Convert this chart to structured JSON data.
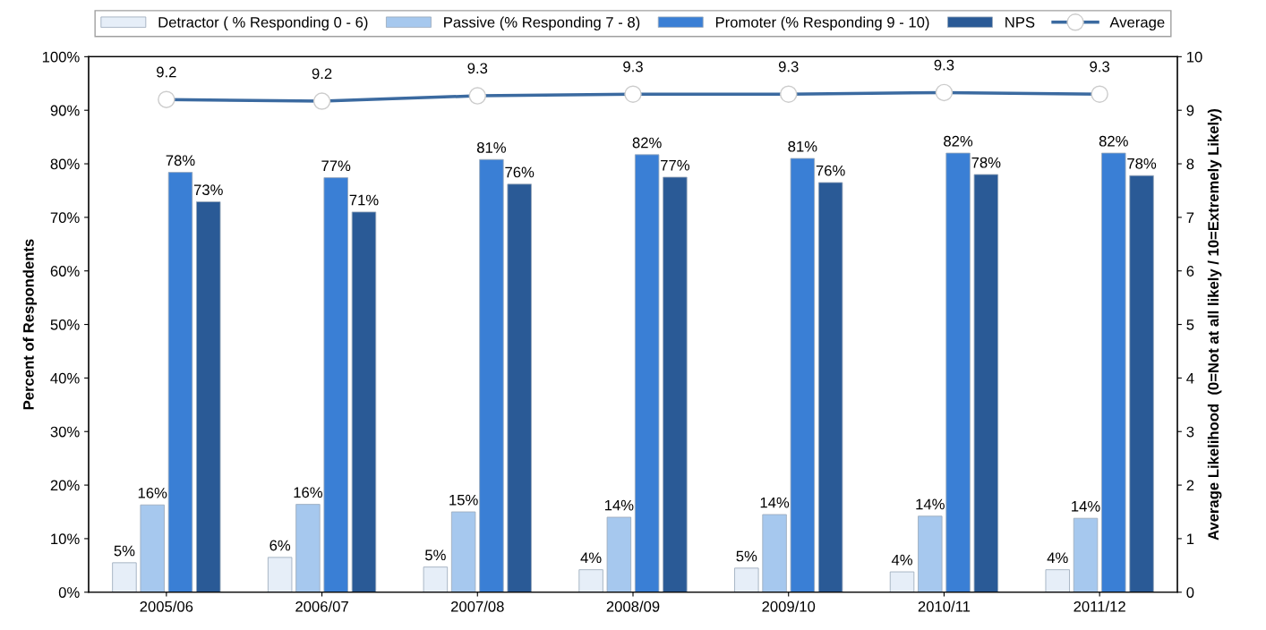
{
  "chart_data": {
    "type": "bar",
    "categories": [
      "2005/06",
      "2006/07",
      "2007/08",
      "2008/09",
      "2009/10",
      "2010/11",
      "2011/12"
    ],
    "ylabel": "Percent of Respondents",
    "y2label": "Average Likelihood  (0=Not at all likely / 10=Extremely Likely)",
    "ylim": [
      0,
      100
    ],
    "yticks": [
      {
        "value": 0,
        "label": "0%"
      },
      {
        "value": 10,
        "label": "10%"
      },
      {
        "value": 20,
        "label": "20%"
      },
      {
        "value": 30,
        "label": "30%"
      },
      {
        "value": 40,
        "label": "40%"
      },
      {
        "value": 50,
        "label": "50%"
      },
      {
        "value": 60,
        "label": "60%"
      },
      {
        "value": 70,
        "label": "70%"
      },
      {
        "value": 80,
        "label": "80%"
      },
      {
        "value": 90,
        "label": "90%"
      },
      {
        "value": 100,
        "label": "100%"
      }
    ],
    "y2lim": [
      0,
      10
    ],
    "y2ticks": [
      0,
      1,
      2,
      3,
      4,
      5,
      6,
      7,
      8,
      9,
      10
    ],
    "grid": false,
    "legend": "top",
    "series": [
      {
        "name": "Detractor ( % Responding 0 - 6)",
        "color": "#e6eef8",
        "values": [
          5.5,
          6.5,
          4.7,
          4.2,
          4.5,
          3.8,
          4.2
        ],
        "value_labels": [
          "5%",
          "6%",
          "5%",
          "4%",
          "5%",
          "4%",
          "4%"
        ]
      },
      {
        "name": "Passive (% Responding 7 - 8)",
        "color": "#a6c8ee",
        "values": [
          16.3,
          16.4,
          15.0,
          14.0,
          14.5,
          14.2,
          13.8
        ],
        "value_labels": [
          "16%",
          "16%",
          "15%",
          "14%",
          "14%",
          "14%",
          "14%"
        ]
      },
      {
        "name": "Promoter (% Responding 9 - 10)",
        "color": "#3a7fd5",
        "values": [
          78.4,
          77.4,
          80.8,
          81.7,
          81.0,
          82.0,
          82.0
        ],
        "value_labels": [
          "78%",
          "77%",
          "81%",
          "82%",
          "81%",
          "82%",
          "82%"
        ]
      },
      {
        "name": "NPS",
        "color": "#2a5a96",
        "values": [
          72.9,
          71.0,
          76.2,
          77.5,
          76.5,
          78.0,
          77.8
        ],
        "value_labels": [
          "73%",
          "71%",
          "76%",
          "77%",
          "76%",
          "78%",
          "78%"
        ]
      },
      {
        "name": "Average",
        "type": "line",
        "axis": "y2",
        "color": "#3b6aa0",
        "marker": "circle",
        "values": [
          9.2,
          9.17,
          9.27,
          9.3,
          9.3,
          9.33,
          9.3
        ],
        "value_labels": [
          "9.2",
          "9.2",
          "9.3",
          "9.3",
          "9.3",
          "9.3",
          "9.3"
        ]
      }
    ]
  }
}
